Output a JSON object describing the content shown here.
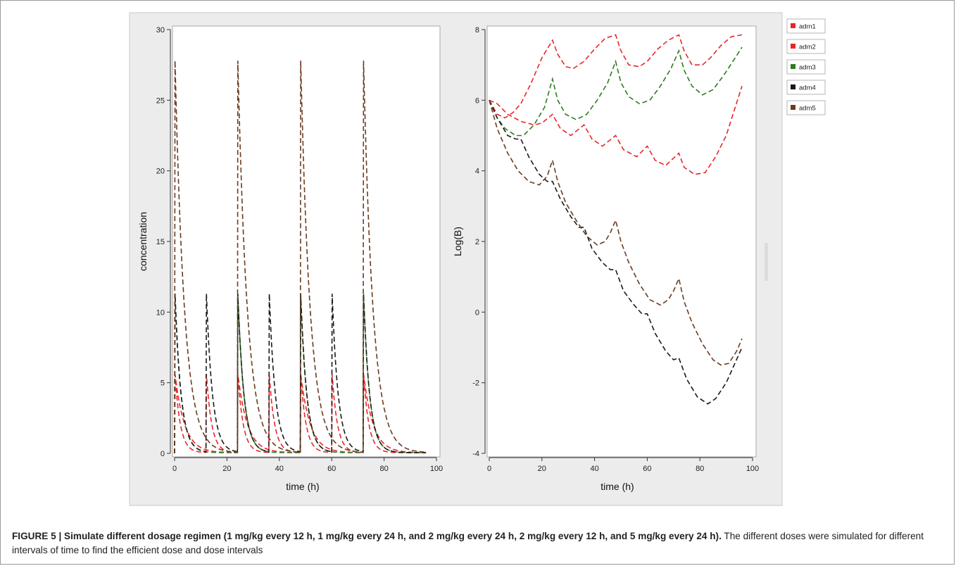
{
  "figure": {
    "caption_lead": "FIGURE 5 | Simulate different dosage regimen (1 mg/kg every 12 h, 1 mg/kg every 24 h, and 2 mg/kg every 24 h, 2 mg/kg every 12 h, and 5 mg/kg every 24 h).",
    "caption_rest": " The different doses were simulated for different intervals of time to find the efficient dose and dose intervals"
  },
  "colors": {
    "adm1": "#e8262a",
    "adm2": "#e8262a",
    "adm3": "#2e7d1f",
    "adm4": "#1a1a1a",
    "adm5": "#6b3b20"
  },
  "legend": {
    "entries": [
      {
        "label": "adm1",
        "color": "#e8262a"
      },
      {
        "label": "adm2",
        "color": "#e8262a"
      },
      {
        "label": "adm3",
        "color": "#2e7d1f"
      },
      {
        "label": "adm4",
        "color": "#1a1a1a"
      },
      {
        "label": "adm5",
        "color": "#6b3b20"
      }
    ]
  },
  "chart_data": [
    {
      "type": "line",
      "title": "",
      "xlabel": "time (h)",
      "ylabel": "concentration",
      "xlim": [
        0,
        100
      ],
      "ylim": [
        0,
        30
      ],
      "xticks": [
        0,
        20,
        40,
        60,
        80,
        100
      ],
      "yticks": [
        0,
        5,
        10,
        15,
        20,
        25,
        30
      ],
      "grid": false,
      "line_style": "dashed",
      "series": [
        {
          "name": "adm1",
          "peak": 5.6,
          "dose_interval": 12,
          "doses_at": [
            0,
            12,
            24,
            36,
            48,
            60,
            72
          ],
          "elimination_half_life": 1.4
        },
        {
          "name": "adm2",
          "peak": 5.6,
          "dose_interval": 24,
          "doses_at": [
            0,
            24,
            48,
            72
          ],
          "elimination_half_life": 2.5
        },
        {
          "name": "adm3",
          "peak": 11.3,
          "dose_interval": 24,
          "doses_at": [
            0,
            24,
            48,
            72
          ],
          "elimination_half_life": 1.6
        },
        {
          "name": "adm4",
          "peak": 11.3,
          "dose_interval": 12,
          "doses_at": [
            0,
            12,
            24,
            36,
            48,
            60,
            72
          ],
          "elimination_half_life": 1.6
        },
        {
          "name": "adm5",
          "peak": 27.8,
          "dose_interval": 24,
          "doses_at": [
            0,
            24,
            48,
            72
          ],
          "elimination_half_life": 2.5
        }
      ]
    },
    {
      "type": "line",
      "title": "",
      "xlabel": "time (h)",
      "ylabel": "Log(B)",
      "xlim": [
        0,
        100
      ],
      "ylim": [
        -4,
        8
      ],
      "xticks": [
        0,
        20,
        40,
        60,
        80,
        100
      ],
      "yticks": [
        -4,
        -2,
        0,
        2,
        4,
        6,
        8
      ],
      "grid": false,
      "line_style": "dashed",
      "series": [
        {
          "name": "adm1",
          "points": [
            [
              0,
              6.0
            ],
            [
              3,
              5.9
            ],
            [
              7,
              5.6
            ],
            [
              12,
              5.4
            ],
            [
              17,
              5.3
            ],
            [
              20,
              5.35
            ],
            [
              24,
              5.6
            ],
            [
              27,
              5.2
            ],
            [
              31,
              5.0
            ],
            [
              36,
              5.3
            ],
            [
              39,
              4.9
            ],
            [
              43,
              4.7
            ],
            [
              48,
              5.0
            ],
            [
              51,
              4.6
            ],
            [
              56,
              4.4
            ],
            [
              60,
              4.7
            ],
            [
              63,
              4.3
            ],
            [
              67,
              4.15
            ],
            [
              72,
              4.5
            ],
            [
              74,
              4.1
            ],
            [
              78,
              3.9
            ],
            [
              82,
              3.95
            ],
            [
              86,
              4.4
            ],
            [
              90,
              5.0
            ],
            [
              93,
              5.7
            ],
            [
              96,
              6.4
            ]
          ]
        },
        {
          "name": "adm2",
          "points": [
            [
              0,
              6.0
            ],
            [
              3,
              5.6
            ],
            [
              6,
              5.5
            ],
            [
              9,
              5.65
            ],
            [
              12,
              5.9
            ],
            [
              16,
              6.5
            ],
            [
              20,
              7.2
            ],
            [
              24,
              7.7
            ],
            [
              26,
              7.3
            ],
            [
              29,
              6.95
            ],
            [
              32,
              6.9
            ],
            [
              36,
              7.1
            ],
            [
              40,
              7.45
            ],
            [
              44,
              7.75
            ],
            [
              48,
              7.85
            ],
            [
              50,
              7.4
            ],
            [
              53,
              7.0
            ],
            [
              57,
              6.95
            ],
            [
              60,
              7.1
            ],
            [
              64,
              7.45
            ],
            [
              68,
              7.7
            ],
            [
              72,
              7.85
            ],
            [
              74,
              7.4
            ],
            [
              77,
              7.0
            ],
            [
              81,
              7.0
            ],
            [
              84,
              7.2
            ],
            [
              88,
              7.55
            ],
            [
              92,
              7.8
            ],
            [
              96,
              7.85
            ]
          ]
        },
        {
          "name": "adm3",
          "points": [
            [
              0,
              6.0
            ],
            [
              3,
              5.5
            ],
            [
              6,
              5.2
            ],
            [
              10,
              5.0
            ],
            [
              13,
              5.0
            ],
            [
              17,
              5.3
            ],
            [
              21,
              5.8
            ],
            [
              24,
              6.6
            ],
            [
              26,
              6.0
            ],
            [
              29,
              5.6
            ],
            [
              33,
              5.45
            ],
            [
              37,
              5.6
            ],
            [
              41,
              6.0
            ],
            [
              45,
              6.5
            ],
            [
              48,
              7.1
            ],
            [
              50,
              6.5
            ],
            [
              53,
              6.1
            ],
            [
              57,
              5.9
            ],
            [
              61,
              6.0
            ],
            [
              65,
              6.4
            ],
            [
              69,
              6.9
            ],
            [
              72,
              7.4
            ],
            [
              74,
              6.85
            ],
            [
              77,
              6.4
            ],
            [
              81,
              6.15
            ],
            [
              85,
              6.3
            ],
            [
              89,
              6.7
            ],
            [
              93,
              7.15
            ],
            [
              96,
              7.5
            ]
          ]
        },
        {
          "name": "adm4",
          "points": [
            [
              0,
              6.0
            ],
            [
              3,
              5.5
            ],
            [
              7,
              5.0
            ],
            [
              10,
              4.9
            ],
            [
              12,
              4.9
            ],
            [
              15,
              4.4
            ],
            [
              19,
              3.9
            ],
            [
              22,
              3.7
            ],
            [
              24,
              3.7
            ],
            [
              27,
              3.2
            ],
            [
              31,
              2.7
            ],
            [
              34,
              2.4
            ],
            [
              36,
              2.4
            ],
            [
              39,
              1.8
            ],
            [
              43,
              1.4
            ],
            [
              46,
              1.2
            ],
            [
              48,
              1.2
            ],
            [
              51,
              0.6
            ],
            [
              55,
              0.2
            ],
            [
              58,
              -0.05
            ],
            [
              60,
              -0.05
            ],
            [
              63,
              -0.6
            ],
            [
              67,
              -1.1
            ],
            [
              70,
              -1.35
            ],
            [
              72,
              -1.3
            ],
            [
              75,
              -1.9
            ],
            [
              79,
              -2.4
            ],
            [
              83,
              -2.6
            ],
            [
              86,
              -2.45
            ],
            [
              90,
              -2.0
            ],
            [
              93,
              -1.5
            ],
            [
              96,
              -1.0
            ]
          ]
        },
        {
          "name": "adm5",
          "points": [
            [
              0,
              6.0
            ],
            [
              3,
              5.2
            ],
            [
              7,
              4.5
            ],
            [
              11,
              4.0
            ],
            [
              15,
              3.7
            ],
            [
              19,
              3.6
            ],
            [
              22,
              3.85
            ],
            [
              24,
              4.3
            ],
            [
              26,
              3.7
            ],
            [
              29,
              3.1
            ],
            [
              33,
              2.6
            ],
            [
              37,
              2.15
            ],
            [
              41,
              1.9
            ],
            [
              44,
              2.0
            ],
            [
              46,
              2.25
            ],
            [
              48,
              2.6
            ],
            [
              50,
              2.0
            ],
            [
              53,
              1.4
            ],
            [
              57,
              0.8
            ],
            [
              61,
              0.35
            ],
            [
              65,
              0.2
            ],
            [
              68,
              0.35
            ],
            [
              70,
              0.6
            ],
            [
              72,
              0.95
            ],
            [
              74,
              0.3
            ],
            [
              77,
              -0.3
            ],
            [
              81,
              -0.9
            ],
            [
              85,
              -1.35
            ],
            [
              88,
              -1.5
            ],
            [
              91,
              -1.45
            ],
            [
              94,
              -1.1
            ],
            [
              96,
              -0.75
            ]
          ]
        }
      ]
    }
  ]
}
